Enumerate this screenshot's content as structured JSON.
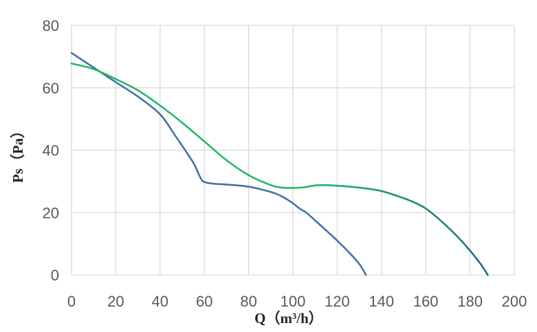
{
  "chart_data": {
    "type": "line",
    "xlabel": "Q（m³/h）",
    "ylabel": "Ps（Pa）",
    "xlim": [
      0,
      200
    ],
    "ylim": [
      0,
      80
    ],
    "x_ticks": [
      0,
      20,
      40,
      60,
      80,
      100,
      120,
      140,
      160,
      180,
      200
    ],
    "y_ticks": [
      0,
      20,
      40,
      60,
      80
    ],
    "grid": true,
    "series": [
      {
        "color": "#4472a4",
        "points": [
          [
            0,
            71.2
          ],
          [
            10,
            66.5
          ],
          [
            20,
            61.8
          ],
          [
            30,
            57.2
          ],
          [
            40,
            51.5
          ],
          [
            47,
            44.5
          ],
          [
            55,
            36.0
          ],
          [
            58,
            31.5
          ],
          [
            60,
            29.8
          ],
          [
            65,
            29.2
          ],
          [
            70,
            29.0
          ],
          [
            80,
            28.3
          ],
          [
            90,
            26.6
          ],
          [
            95,
            25.2
          ],
          [
            100,
            23.0
          ],
          [
            103,
            21.3
          ],
          [
            106,
            20.0
          ],
          [
            110,
            17.5
          ],
          [
            115,
            14.3
          ],
          [
            120,
            11.0
          ],
          [
            125,
            7.5
          ],
          [
            130,
            3.5
          ],
          [
            133,
            0
          ]
        ]
      },
      {
        "color": "#22b868",
        "end_color": "#1a6e85",
        "points": [
          [
            0,
            67.8
          ],
          [
            10,
            66.0
          ],
          [
            20,
            62.8
          ],
          [
            30,
            59.2
          ],
          [
            40,
            54.3
          ],
          [
            50,
            48.8
          ],
          [
            60,
            42.8
          ],
          [
            70,
            36.8
          ],
          [
            80,
            32.0
          ],
          [
            90,
            28.8
          ],
          [
            95,
            28.0
          ],
          [
            100,
            27.9
          ],
          [
            105,
            28.1
          ],
          [
            110,
            28.7
          ],
          [
            115,
            28.8
          ],
          [
            120,
            28.6
          ],
          [
            130,
            28.0
          ],
          [
            140,
            26.9
          ],
          [
            150,
            24.6
          ],
          [
            155,
            23.2
          ],
          [
            160,
            21.3
          ],
          [
            165,
            18.5
          ],
          [
            170,
            15.3
          ],
          [
            175,
            11.8
          ],
          [
            180,
            7.8
          ],
          [
            185,
            3.3
          ],
          [
            188,
            0
          ]
        ]
      }
    ]
  }
}
